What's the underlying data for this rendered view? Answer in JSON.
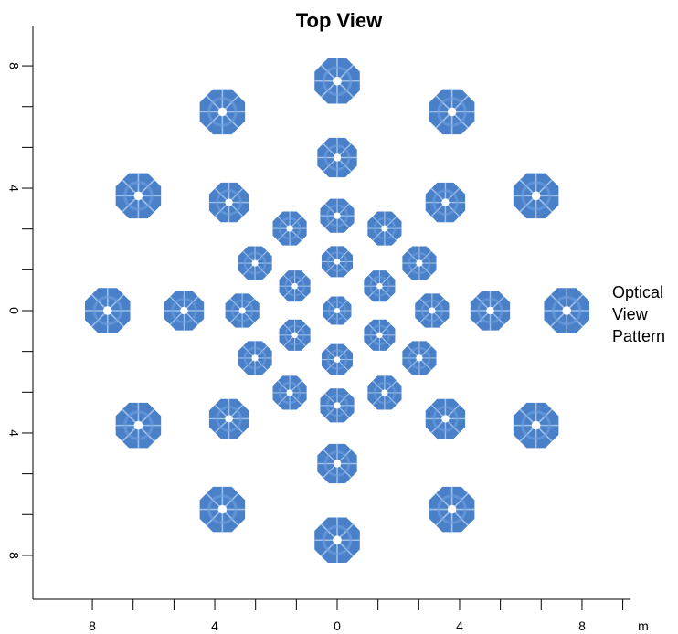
{
  "title": "Top View",
  "side_label": [
    "Optical",
    "View",
    "Pattern"
  ],
  "axes": {
    "x_tick_labels": [
      "8",
      "4",
      "0",
      "4",
      "8"
    ],
    "x_tick_values": [
      -8,
      -4,
      0,
      4,
      8
    ],
    "x_unit": "m",
    "y_tick_labels": [
      "8",
      "4",
      "0",
      "4",
      "8"
    ],
    "y_tick_values": [
      8,
      4,
      0,
      -4,
      -8
    ],
    "x_range": [
      -9.2,
      10
    ],
    "y_range": [
      -9.6,
      9.6
    ],
    "minor_tick_step": 1.333
  },
  "colors": {
    "segment_fill": "#4a80c8",
    "segment_highlight": "#6fa0dd",
    "segment_line": "#9ec0ea",
    "center_hole": "#ffffff"
  },
  "chart_data": {
    "type": "scatter",
    "description_of_marks": "octagonal segmented mirror elements",
    "rings": [
      {
        "radius": 1.6,
        "count": 6,
        "phase_deg": 90,
        "size": 0.55
      },
      {
        "radius": 3.1,
        "count": 12,
        "phase_deg": 90,
        "size": 0.6
      },
      {
        "radius": 5.0,
        "count": 8,
        "phase_deg": 90,
        "size": 0.7
      },
      {
        "radius": 7.5,
        "count": 12,
        "phase_deg": 90,
        "size": 0.8
      }
    ],
    "center": {
      "x": 0,
      "y": 0,
      "size": 0.5
    }
  }
}
